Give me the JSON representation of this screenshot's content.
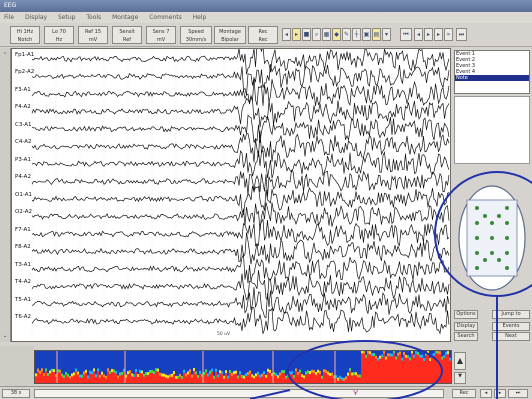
{
  "window": {
    "title": "EEG"
  },
  "menu": [
    "File",
    "Display",
    "Setup",
    "Tools",
    "Montage",
    "Comments",
    "Help"
  ],
  "toolbar": [
    {
      "top": "Hi 1Hz",
      "bottom": "Notch"
    },
    {
      "top": "Lo 70",
      "bottom": "Hz"
    },
    {
      "top": "Ref 15",
      "bottom": "mV"
    },
    {
      "top": "Sensit",
      "bottom": "Ref"
    },
    {
      "top": "Sens 7",
      "bottom": "mV"
    },
    {
      "top": "Speed",
      "bottom": "30mm/s"
    },
    {
      "top": "Montage",
      "bottom": "Bipolar"
    },
    {
      "top": "Rec",
      "bottom": "Rec"
    }
  ],
  "icons": [
    "prev-icon",
    "play-icon",
    "stop-icon",
    "zoom-icon",
    "grid-icon",
    "marker-icon",
    "note-icon",
    "ruler-icon",
    "video-icon",
    "print-icon",
    "save-icon",
    "first-icon",
    "back-icon",
    "next-icon",
    "last-icon",
    "fast-icon",
    "end-icon"
  ],
  "channels": [
    "Fp1-A1",
    "Fp2-A2",
    "F3-A1",
    "F4-A2",
    "C3-A1",
    "C4-A2",
    "P3-A1",
    "P4-A2",
    "O1-A1",
    "O2-A2",
    "F7-A1",
    "F8-A2",
    "T3-A1",
    "T4-A2",
    "T5-A1",
    "T6-A2"
  ],
  "scale_note": "50 uV",
  "events_list": [
    "Event 1",
    "Event 2",
    "Event 3",
    "Event 4",
    "Note"
  ],
  "right_buttons": [
    "Options",
    "Display",
    "Search",
    "Jump to",
    "Events",
    "Next"
  ],
  "status": [
    "38 s",
    "",
    "Rec"
  ],
  "colors": {
    "spectro_low": "#1c3ac8",
    "spectro_high": "#ff2b1f",
    "annotation": "#2233aa"
  }
}
